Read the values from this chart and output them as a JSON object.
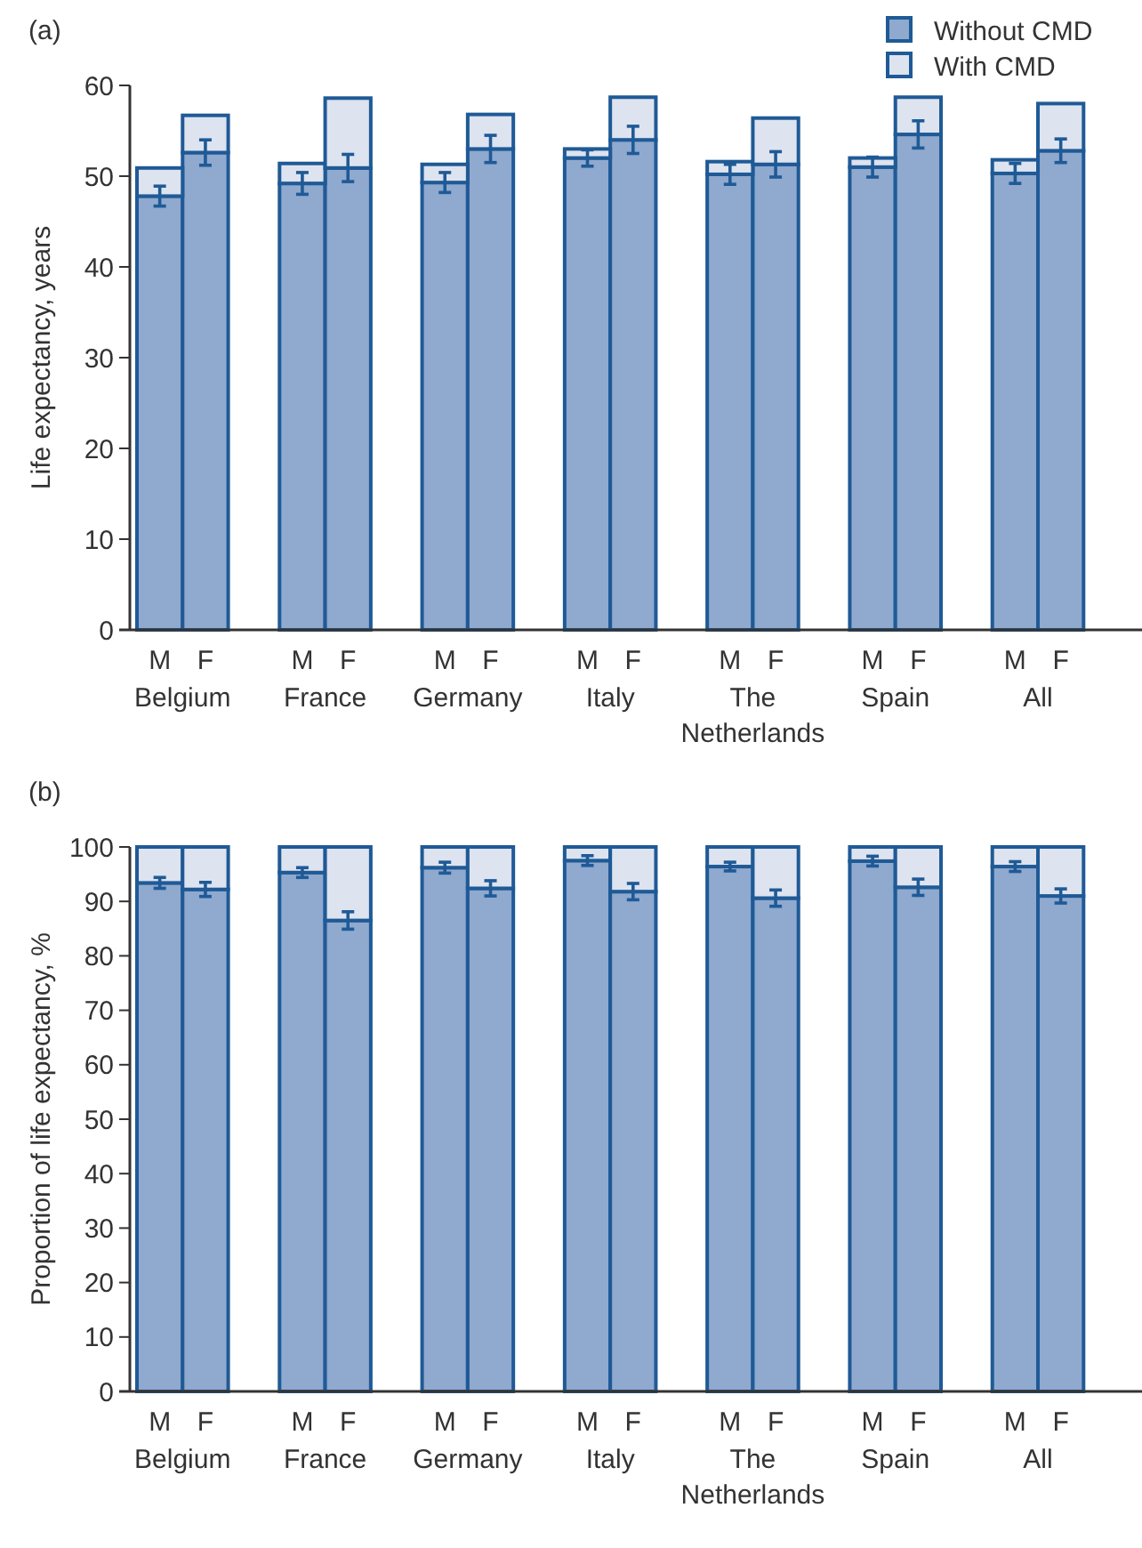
{
  "chart_data": [
    {
      "type": "bar",
      "title": "(a)",
      "ylabel": "Life expectancy, years",
      "stacked": true,
      "legend": "top right",
      "categories": [
        "M",
        "F",
        "M",
        "F",
        "M",
        "F",
        "M",
        "F",
        "M",
        "F",
        "M",
        "F",
        "M",
        "F"
      ],
      "annotations": [
        "Belgium",
        "France",
        "Germany",
        "Italy",
        "The Netherlands",
        "Spain",
        "All"
      ],
      "ylim": [
        0,
        60
      ],
      "yticks": [
        0,
        10,
        20,
        30,
        40,
        50,
        60
      ],
      "series": [
        {
          "name": "Without CMD",
          "color": "#8fa9cf",
          "values": [
            47.8,
            52.6,
            49.2,
            50.9,
            49.3,
            53.0,
            52.0,
            54.0,
            50.2,
            51.3,
            51.0,
            54.6,
            50.3,
            52.8
          ],
          "errors": [
            1.1,
            1.4,
            1.2,
            1.5,
            1.1,
            1.5,
            0.9,
            1.5,
            1.1,
            1.4,
            1.1,
            1.5,
            1.1,
            1.3
          ]
        },
        {
          "name": "With CMD",
          "color": "#dde3ef",
          "values": [
            3.1,
            4.1,
            2.2,
            7.7,
            2.0,
            3.8,
            1.0,
            4.7,
            1.4,
            5.1,
            1.0,
            4.1,
            1.5,
            5.2
          ]
        }
      ]
    },
    {
      "type": "bar",
      "title": "(b)",
      "ylabel": "Proportion of life expectancy, %",
      "stacked": true,
      "categories": [
        "M",
        "F",
        "M",
        "F",
        "M",
        "F",
        "M",
        "F",
        "M",
        "F",
        "M",
        "F",
        "M",
        "F"
      ],
      "annotations": [
        "Belgium",
        "France",
        "Germany",
        "Italy",
        "The Netherlands",
        "Spain",
        "All"
      ],
      "ylim": [
        0,
        100
      ],
      "yticks": [
        0,
        10,
        20,
        30,
        40,
        50,
        60,
        70,
        80,
        90,
        100
      ],
      "series": [
        {
          "color": "#8fa9cf",
          "values": [
            93.4,
            92.2,
            95.3,
            86.5,
            96.2,
            92.4,
            97.5,
            91.8,
            96.4,
            90.6,
            97.4,
            92.6,
            96.4,
            91.0
          ],
          "errors": [
            1.0,
            1.3,
            0.9,
            1.6,
            1.0,
            1.4,
            0.9,
            1.5,
            0.8,
            1.5,
            0.9,
            1.5,
            0.9,
            1.3
          ]
        },
        {
          "color": "#dde3ef",
          "values": [
            6.6,
            7.8,
            4.7,
            13.5,
            3.8,
            7.6,
            2.5,
            8.2,
            3.6,
            9.4,
            2.6,
            7.4,
            3.6,
            9.0
          ]
        }
      ]
    }
  ]
}
